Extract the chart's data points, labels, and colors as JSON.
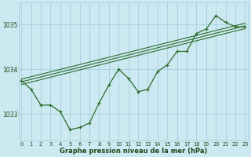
{
  "xlabel": "Graphe pression niveau de la mer (hPa)",
  "background_color": "#cce8f0",
  "grid_color": "#9dcadb",
  "line_color": "#2d6e2d",
  "text_color": "#1a4a1a",
  "hours": [
    0,
    1,
    2,
    3,
    4,
    5,
    6,
    7,
    8,
    9,
    10,
    11,
    12,
    13,
    14,
    15,
    16,
    17,
    18,
    19,
    20,
    21,
    22,
    23
  ],
  "pressure": [
    1033.75,
    1033.55,
    1033.2,
    1033.2,
    1033.05,
    1032.65,
    1032.7,
    1032.8,
    1033.25,
    1033.65,
    1034.0,
    1033.8,
    1033.5,
    1033.55,
    1033.95,
    1034.1,
    1034.4,
    1034.4,
    1034.8,
    1034.9,
    1035.2,
    1035.05,
    1034.95,
    1034.95
  ],
  "ylim": [
    1032.4,
    1035.5
  ],
  "yticks": [
    1033,
    1034,
    1035
  ],
  "trend_line1": [
    [
      0,
      23
    ],
    [
      1033.72,
      1034.97
    ]
  ],
  "trend_line2": [
    [
      0,
      23
    ],
    [
      1033.78,
      1035.03
    ]
  ],
  "trend_line3": [
    [
      0,
      23
    ],
    [
      1033.66,
      1034.91
    ]
  ]
}
